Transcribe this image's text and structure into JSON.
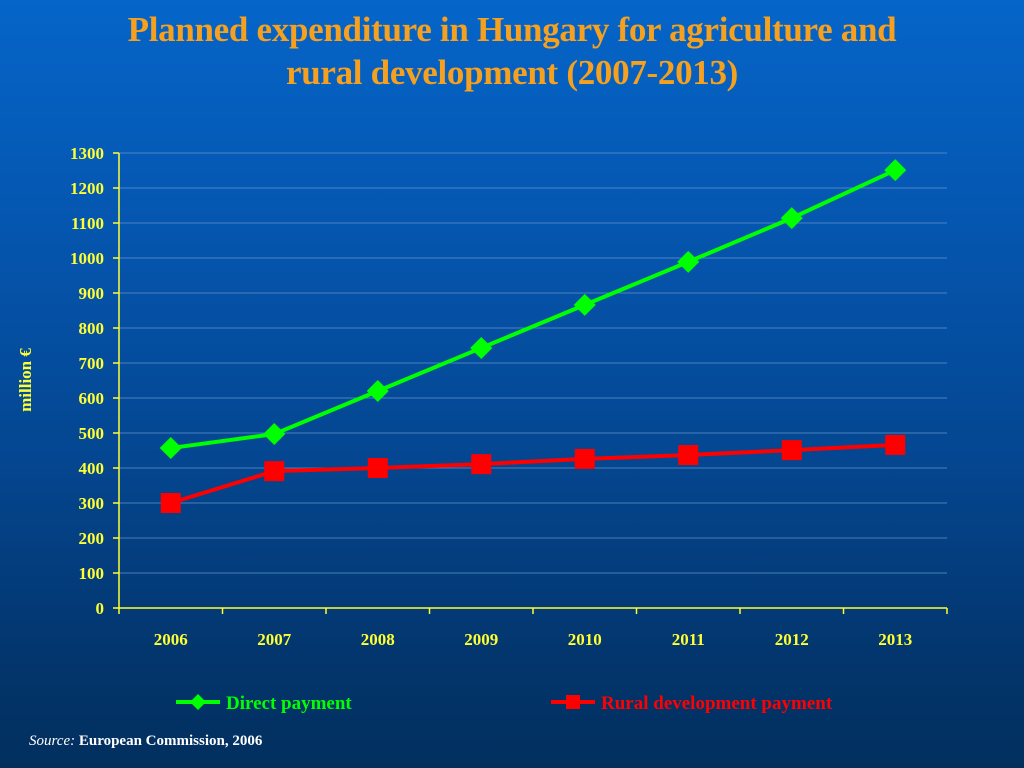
{
  "title": {
    "line1": "Planned expenditure in Hungary for agriculture and",
    "line2": "rural development (2007-2013)"
  },
  "source": {
    "label": "Source:",
    "text": "European Commission, 2006"
  },
  "colors": {
    "title": "#f5a01f",
    "axis": "#ffff33",
    "direct": "#00ff00",
    "rural": "#ff0000",
    "grid": "#5b8fc8"
  },
  "chart_data": {
    "type": "line",
    "title": "Planned expenditure in Hungary for agriculture and rural development (2007-2013)",
    "xlabel": "",
    "ylabel": "million €",
    "categories": [
      "2006",
      "2007",
      "2008",
      "2009",
      "2010",
      "2011",
      "2012",
      "2013"
    ],
    "ylim": [
      0,
      1300
    ],
    "yticks": [
      0,
      100,
      200,
      300,
      400,
      500,
      600,
      700,
      800,
      900,
      1000,
      1100,
      1200,
      1300
    ],
    "grid": true,
    "legend_position": "bottom",
    "series": [
      {
        "name": "Direct payment",
        "color": "#00ff00",
        "marker": "diamond",
        "values": [
          457,
          497,
          620,
          743,
          866,
          989,
          1114,
          1251
        ]
      },
      {
        "name": "Rural development payment",
        "color": "#ff0000",
        "marker": "square",
        "values": [
          300,
          391,
          400,
          411,
          426,
          437,
          451,
          466
        ]
      }
    ]
  }
}
